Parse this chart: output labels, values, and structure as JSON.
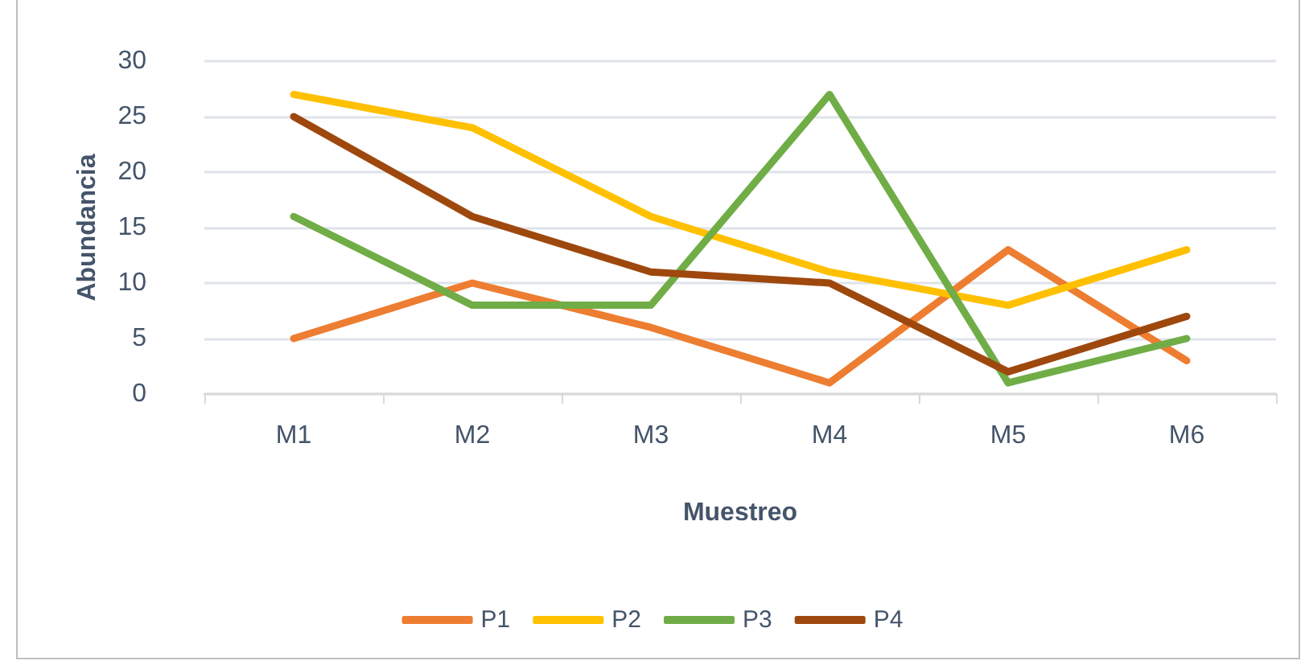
{
  "chart_data": {
    "type": "line",
    "xlabel": "Muestreo",
    "ylabel": "Abundancia",
    "categories": [
      "M1",
      "M2",
      "M3",
      "M4",
      "M5",
      "M6"
    ],
    "series": [
      {
        "name": "P1",
        "color": "#ed7d31",
        "values": [
          5,
          10,
          6,
          1,
          13,
          3
        ]
      },
      {
        "name": "P2",
        "color": "#ffc000",
        "values": [
          27,
          24,
          16,
          11,
          8,
          13
        ]
      },
      {
        "name": "P3",
        "color": "#70ad47",
        "values": [
          16,
          8,
          8,
          27,
          1,
          5
        ]
      },
      {
        "name": "P4",
        "color": "#9e480e",
        "values": [
          25,
          16,
          11,
          10,
          2,
          7
        ]
      }
    ],
    "ylim": [
      0,
      30
    ],
    "yticks": [
      0,
      5,
      10,
      15,
      20,
      25,
      30
    ],
    "grid": "y",
    "legend": "bottom",
    "marker": "none",
    "line_style": "solid"
  }
}
